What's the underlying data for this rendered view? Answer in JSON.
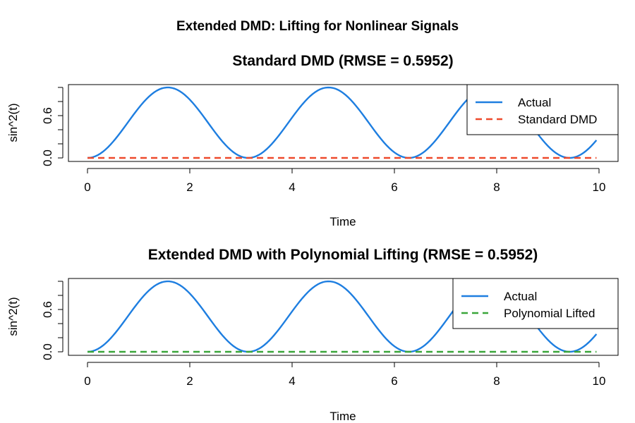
{
  "figure_title": "Extended DMD: Lifting for Nonlinear Signals",
  "chart_data": [
    {
      "type": "line",
      "title": "Standard DMD (RMSE = 0.5952)",
      "xlabel": "Time",
      "ylabel": "sin^2(t)",
      "xlim": [
        0,
        10
      ],
      "ylim": [
        0,
        1
      ],
      "x_ticks": [
        "0",
        "2",
        "4",
        "6",
        "8",
        "10"
      ],
      "y_ticks": [
        "0.0",
        "0.6"
      ],
      "grid": false,
      "legend_position": "top-right",
      "series": [
        {
          "name": "Actual",
          "color": "#1E7EE0",
          "style": "solid",
          "function": "sin^2(t)",
          "x_range": [
            0,
            9.95
          ],
          "step": 0.05
        },
        {
          "name": "Standard DMD",
          "color": "#EE4A2C",
          "style": "dashed",
          "x": [
            0,
            9.95
          ],
          "y": [
            0,
            0
          ]
        }
      ]
    },
    {
      "type": "line",
      "title": "Extended DMD with Polynomial Lifting (RMSE = 0.5952)",
      "xlabel": "Time",
      "ylabel": "sin^2(t)",
      "xlim": [
        0,
        10
      ],
      "ylim": [
        0,
        1
      ],
      "x_ticks": [
        "0",
        "2",
        "4",
        "6",
        "8",
        "10"
      ],
      "y_ticks": [
        "0.0",
        "0.6"
      ],
      "grid": false,
      "legend_position": "top-right",
      "series": [
        {
          "name": "Actual",
          "color": "#1E7EE0",
          "style": "solid",
          "function": "sin^2(t)",
          "x_range": [
            0,
            9.95
          ],
          "step": 0.05
        },
        {
          "name": "Polynomial Lifted",
          "color": "#3AA63A",
          "style": "dashed",
          "x": [
            0,
            9.95
          ],
          "y": [
            0,
            0
          ]
        }
      ]
    }
  ]
}
